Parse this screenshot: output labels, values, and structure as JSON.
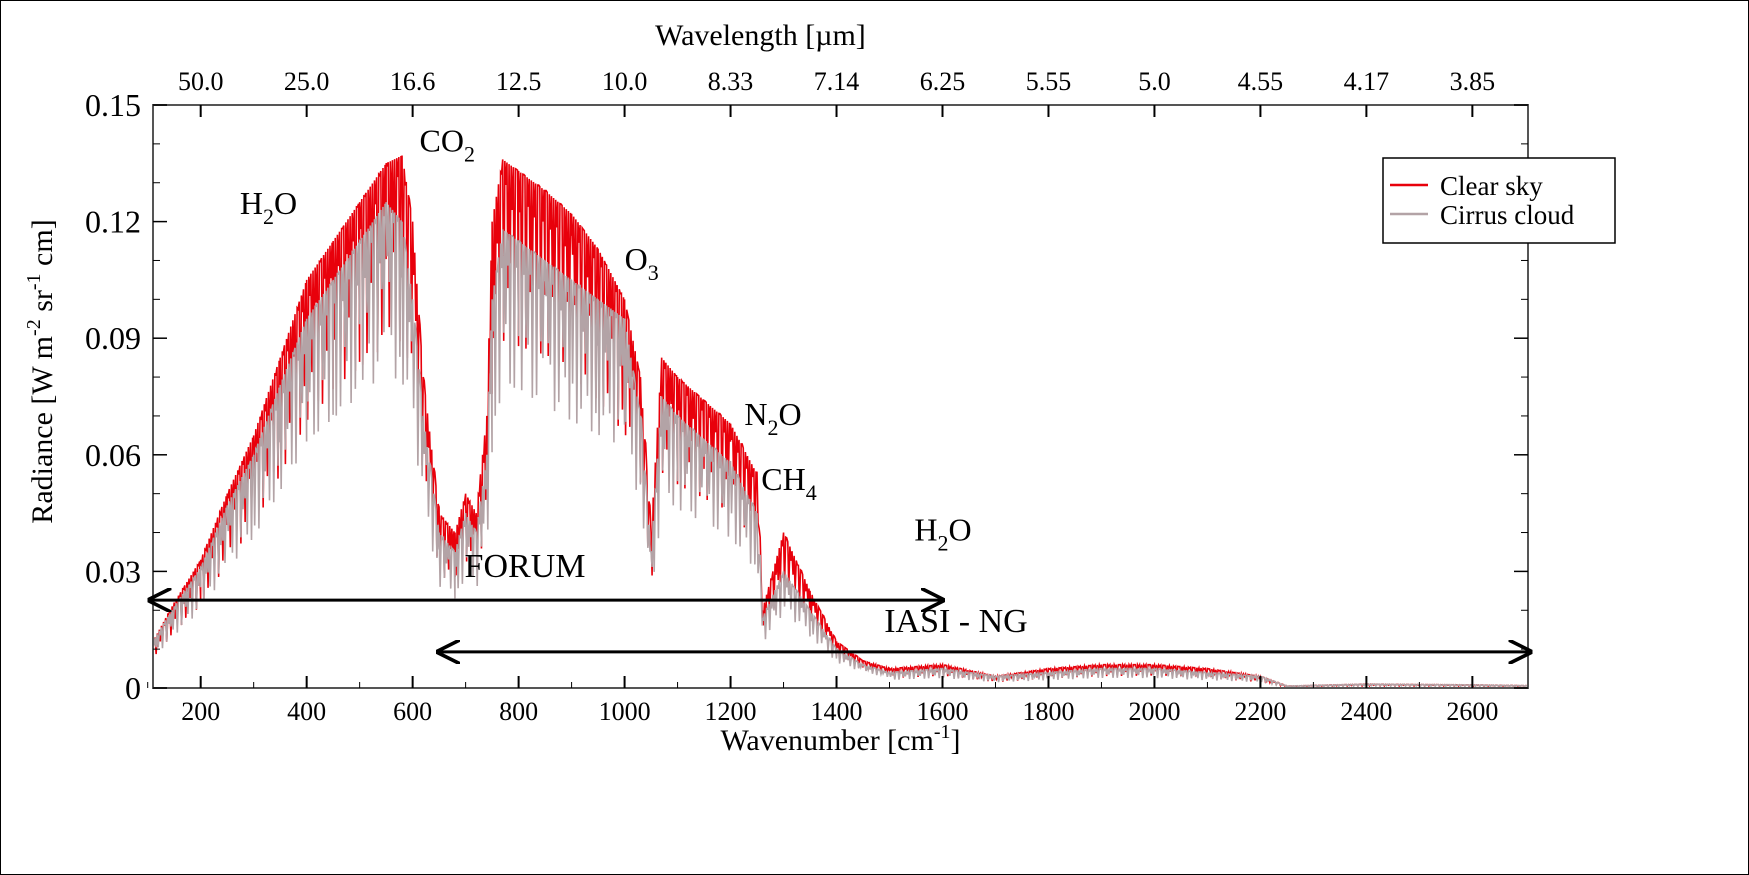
{
  "chart_data": {
    "type": "line",
    "xlabel": "Wavenumber [cm",
    "xlabel_sup": "-1",
    "xlabel_end": "]",
    "ylabel": "Radiance [W m",
    "ylabel_parts": [
      "Radiance [W m",
      "-2",
      " sr",
      "-1",
      " cm]"
    ],
    "top_axis_label": "Wavelength [µm]",
    "xlim": [
      110,
      2705
    ],
    "ylim": [
      0,
      0.15
    ],
    "x_ticks": [
      200,
      400,
      600,
      800,
      1000,
      1200,
      1400,
      1600,
      1800,
      2000,
      2200,
      2400,
      2600
    ],
    "x_tick_labels": [
      "200",
      "400",
      "600",
      "800",
      "1000",
      "1200",
      "1400",
      "1600",
      "1800",
      "2000",
      "2200",
      "2400",
      "2600"
    ],
    "y_ticks": [
      0,
      0.03,
      0.06,
      0.09,
      0.12,
      0.15
    ],
    "y_tick_labels": [
      "0",
      "0.03",
      "0.06",
      "0.09",
      "0.12",
      "0.15"
    ],
    "top_ticks_wavenumber": [
      200,
      400,
      600,
      800,
      1000,
      1200,
      1400,
      1600,
      1800,
      2000,
      2200,
      2400,
      2600
    ],
    "top_tick_labels": [
      "50.0",
      "25.0",
      "16.6",
      "12.5",
      "10.0",
      "8.33",
      "7.14",
      "6.25",
      "5.55",
      "5.0",
      "4.55",
      "4.17",
      "3.85"
    ],
    "grid": false,
    "legend_placement": "top-right",
    "series": [
      {
        "name": "Clear sky",
        "color": "#e8000b",
        "x": [
          110,
          150,
          200,
          250,
          300,
          350,
          400,
          450,
          500,
          550,
          580,
          600,
          620,
          650,
          680,
          700,
          720,
          740,
          750,
          770,
          800,
          850,
          900,
          950,
          1000,
          1030,
          1050,
          1070,
          1100,
          1150,
          1200,
          1250,
          1260,
          1300,
          1350,
          1400,
          1450,
          1500,
          1600,
          1700,
          1800,
          1900,
          2000,
          2100,
          2200,
          2250,
          2400,
          2600,
          2705
        ],
        "y": [
          0.012,
          0.022,
          0.033,
          0.05,
          0.065,
          0.085,
          0.105,
          0.115,
          0.125,
          0.135,
          0.137,
          0.12,
          0.08,
          0.045,
          0.04,
          0.05,
          0.045,
          0.07,
          0.12,
          0.136,
          0.133,
          0.128,
          0.122,
          0.113,
          0.1,
          0.08,
          0.04,
          0.085,
          0.08,
          0.074,
          0.068,
          0.055,
          0.02,
          0.04,
          0.025,
          0.012,
          0.007,
          0.005,
          0.006,
          0.003,
          0.005,
          0.006,
          0.006,
          0.005,
          0.003,
          0.0005,
          0.001,
          0.0008,
          0.0006
        ]
      },
      {
        "name": "Cirrus cloud",
        "color": "#b3a3a6",
        "x": [
          110,
          150,
          200,
          250,
          300,
          350,
          400,
          450,
          500,
          550,
          580,
          600,
          620,
          650,
          680,
          700,
          720,
          740,
          750,
          770,
          800,
          850,
          900,
          950,
          1000,
          1030,
          1050,
          1070,
          1100,
          1150,
          1200,
          1250,
          1260,
          1300,
          1350,
          1400,
          1450,
          1500,
          1600,
          1700,
          1800,
          1900,
          2000,
          2100,
          2200,
          2250,
          2400,
          2600,
          2705
        ],
        "y": [
          0.012,
          0.021,
          0.031,
          0.047,
          0.06,
          0.078,
          0.095,
          0.105,
          0.115,
          0.125,
          0.12,
          0.1,
          0.07,
          0.04,
          0.035,
          0.045,
          0.04,
          0.06,
          0.1,
          0.118,
          0.115,
          0.11,
          0.105,
          0.1,
          0.095,
          0.07,
          0.035,
          0.075,
          0.07,
          0.064,
          0.058,
          0.045,
          0.018,
          0.03,
          0.02,
          0.01,
          0.006,
          0.004,
          0.005,
          0.003,
          0.004,
          0.005,
          0.005,
          0.004,
          0.003,
          0.0005,
          0.001,
          0.0008,
          0.0006
        ]
      }
    ],
    "annotations": [
      {
        "text": "H",
        "sub": "2",
        "tail": "O",
        "x": 274,
        "y": 0.122
      },
      {
        "text": "CO",
        "sub": "2",
        "tail": "",
        "x": 613,
        "y": 0.138
      },
      {
        "text": "O",
        "sub": "3",
        "tail": "",
        "x": 1000,
        "y": 0.1075
      },
      {
        "text": "N",
        "sub": "2",
        "tail": "O",
        "x": 1226,
        "y": 0.0677
      },
      {
        "text": "CH",
        "sub": "4",
        "tail": "",
        "x": 1258,
        "y": 0.051
      },
      {
        "text": "H",
        "sub": "2",
        "tail": "O",
        "x": 1547,
        "y": 0.038
      }
    ],
    "ranges": [
      {
        "label": "FORUM",
        "from": 100,
        "to": 1600,
        "y": 0.0226,
        "label_x": 698,
        "label_y": 0.0286
      },
      {
        "label": "IASI - NG",
        "from": 645,
        "to": 2760,
        "y": 0.0093,
        "label_x": 1490,
        "label_y": 0.0144
      }
    ]
  }
}
